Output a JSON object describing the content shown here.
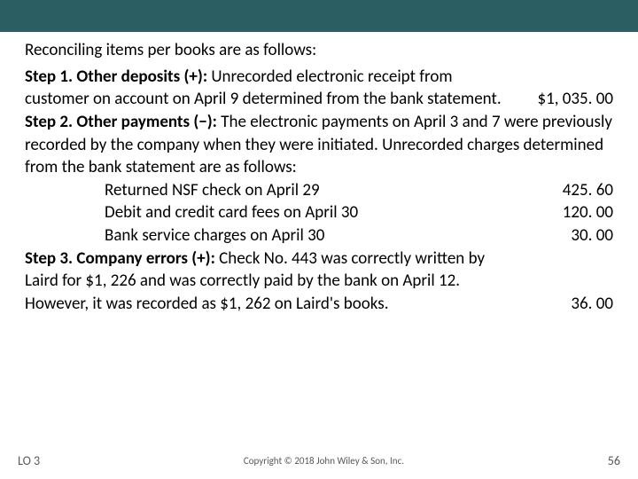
{
  "header": {
    "bg_color": "#2a5e62"
  },
  "intro": "Reconciling items per books are as follows:",
  "step1": {
    "label": "Step 1. Other deposits (+): ",
    "text": "Unrecorded electronic receipt from customer on account on April 9 determined from the bank statement.",
    "amount": "$1, 035. 00"
  },
  "step2": {
    "label": "Step 2. Other payments (−): ",
    "text": "The electronic payments on April 3 and 7 were previously recorded by the company when they were initiated. Unrecorded charges determined from the bank statement are as follows:",
    "lines": [
      {
        "text": "Returned NSF check on April 29",
        "amount": "425. 60"
      },
      {
        "text": "Debit and credit card fees on April 30",
        "amount": "120. 00"
      },
      {
        "text": "Bank service charges on April 30",
        "amount": "30. 00"
      }
    ]
  },
  "step3": {
    "label": "Step 3. Company errors (+): ",
    "text": "Check No. 443 was correctly written by Laird for $1, 226 and was correctly paid by the bank on April 12. However, it was recorded as $1, 262 on Laird's books.",
    "amount": "36. 00"
  },
  "footer": {
    "lo": "LO 3",
    "copyright": "Copyright © 2018 John Wiley & Son, Inc.",
    "page": "56"
  }
}
